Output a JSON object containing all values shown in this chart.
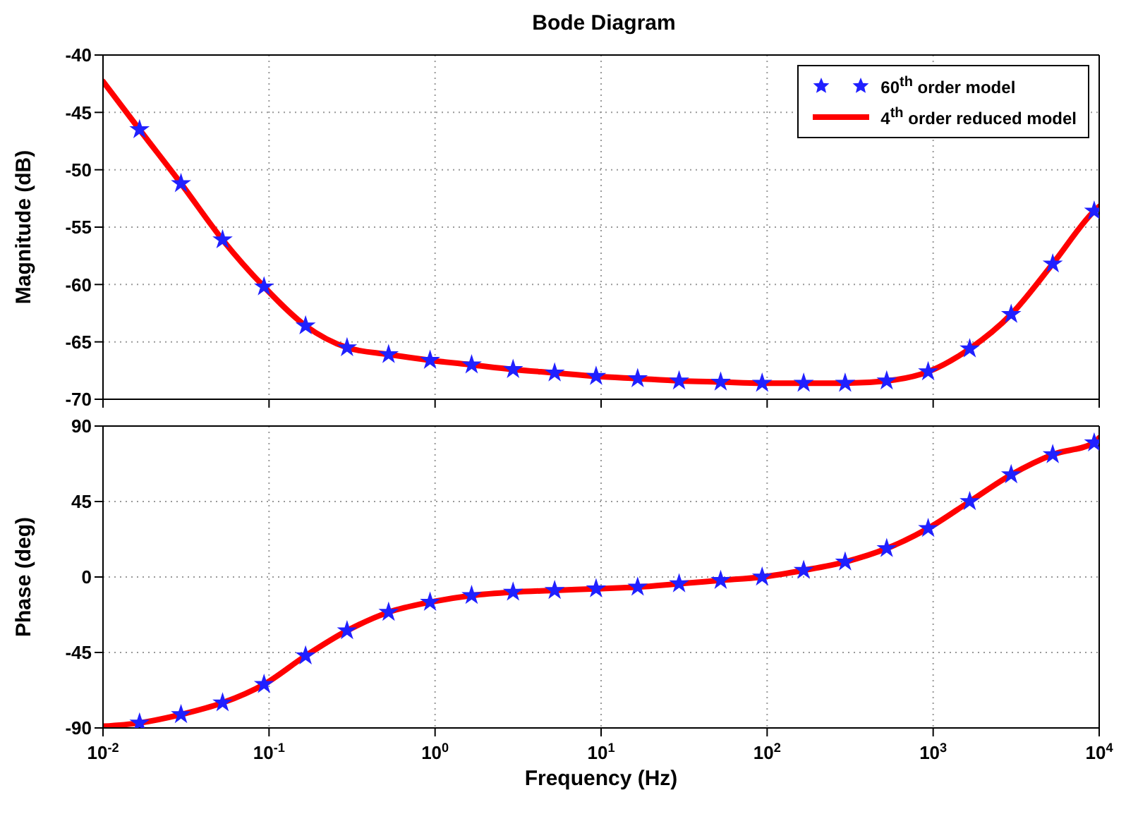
{
  "chart_data": [
    {
      "type": "line",
      "title": "Bode Diagram",
      "ylabel": "Magnitude (dB)",
      "log": "x",
      "xlim": [
        0.01,
        10000
      ],
      "xticks": [
        0.01,
        0.1,
        1,
        10,
        100,
        1000,
        10000
      ],
      "ylim": [
        -70,
        -40
      ],
      "yticks": [
        -70,
        -65,
        -60,
        -55,
        -50,
        -45,
        -40
      ],
      "grid": true,
      "legend": "top right",
      "tick_labels": "y",
      "series": [
        {
          "name": "60$^{th}$ order model",
          "type": "scatter",
          "marker": "star",
          "color": "#2020ff",
          "x": [
            0.0166,
            0.0295,
            0.0525,
            0.0933,
            0.166,
            0.295,
            0.525,
            0.933,
            1.66,
            2.95,
            5.25,
            9.33,
            16.6,
            29.5,
            52.5,
            93.3,
            166,
            295,
            525,
            933,
            1660,
            2950,
            5250,
            9330
          ],
          "values": [
            -46.5,
            -51.2,
            -56.1,
            -60.2,
            -63.6,
            -65.5,
            -66.1,
            -66.6,
            -67,
            -67.4,
            -67.7,
            -68,
            -68.2,
            -68.4,
            -68.5,
            -68.6,
            -68.6,
            -68.6,
            -68.4,
            -67.6,
            -65.6,
            -62.6,
            -58.2,
            -53.6
          ]
        },
        {
          "name": "4$^{th}$ order reduced model",
          "type": "line",
          "marker": "none",
          "line_style": "solid",
          "color": "#ff0000",
          "x": [
            0.01,
            0.0166,
            0.0295,
            0.0525,
            0.0933,
            0.166,
            0.295,
            0.525,
            0.933,
            1.66,
            2.95,
            5.25,
            9.33,
            16.6,
            29.5,
            52.5,
            93.3,
            166,
            295,
            525,
            933,
            1660,
            2950,
            5250,
            9330,
            10000
          ],
          "values": [
            -42.3,
            -46.5,
            -51.2,
            -56.1,
            -60.2,
            -63.6,
            -65.5,
            -66.1,
            -66.6,
            -67,
            -67.4,
            -67.7,
            -68,
            -68.2,
            -68.4,
            -68.5,
            -68.6,
            -68.6,
            -68.6,
            -68.4,
            -67.6,
            -65.6,
            -62.6,
            -58.2,
            -53.6,
            -53.2
          ]
        }
      ]
    },
    {
      "type": "line",
      "xlabel": "Frequency  (Hz)",
      "ylabel": "Phase (deg)",
      "log": "x",
      "xlim": [
        0.01,
        10000
      ],
      "xticks": [
        {
          "value": 0.01,
          "label": "10$^{-2}$"
        },
        {
          "value": 0.1,
          "label": "10$^{-1}$"
        },
        {
          "value": 1,
          "label": "10$^{0}$"
        },
        {
          "value": 10,
          "label": "10$^{1}$"
        },
        {
          "value": 100,
          "label": "10$^{2}$"
        },
        {
          "value": 1000,
          "label": "10$^{3}$"
        },
        {
          "value": 10000,
          "label": "10$^{4}$"
        }
      ],
      "ylim": [
        -90,
        90
      ],
      "yticks": [
        -90,
        -45,
        0,
        45,
        90
      ],
      "grid": true,
      "series": [
        {
          "type": "scatter",
          "marker": "star",
          "color": "#2020ff",
          "x": [
            0.0166,
            0.0295,
            0.0525,
            0.0933,
            0.166,
            0.295,
            0.525,
            0.933,
            1.66,
            2.95,
            5.25,
            9.33,
            16.6,
            29.5,
            52.5,
            93.3,
            166,
            295,
            525,
            933,
            1660,
            2950,
            5250,
            9330
          ],
          "values": [
            -87,
            -82,
            -75,
            -64,
            -47,
            -32,
            -21,
            -15,
            -11,
            -9,
            -8,
            -7,
            -6,
            -4,
            -2,
            0,
            4,
            9,
            17,
            29,
            45,
            61,
            73,
            80
          ]
        },
        {
          "type": "line",
          "marker": "none",
          "line_style": "solid",
          "color": "#ff0000",
          "x": [
            0.01,
            0.0166,
            0.0295,
            0.0525,
            0.0933,
            0.166,
            0.295,
            0.525,
            0.933,
            1.66,
            2.95,
            5.25,
            9.33,
            16.6,
            29.5,
            52.5,
            93.3,
            166,
            295,
            525,
            933,
            1660,
            2950,
            5250,
            9330,
            10000
          ],
          "values": [
            -89,
            -87,
            -82,
            -75,
            -64,
            -47,
            -32,
            -21,
            -15,
            -11,
            -9,
            -8,
            -7,
            -6,
            -4,
            -2,
            0,
            4,
            9,
            17,
            29,
            45,
            61,
            73,
            80,
            83
          ]
        }
      ]
    }
  ]
}
